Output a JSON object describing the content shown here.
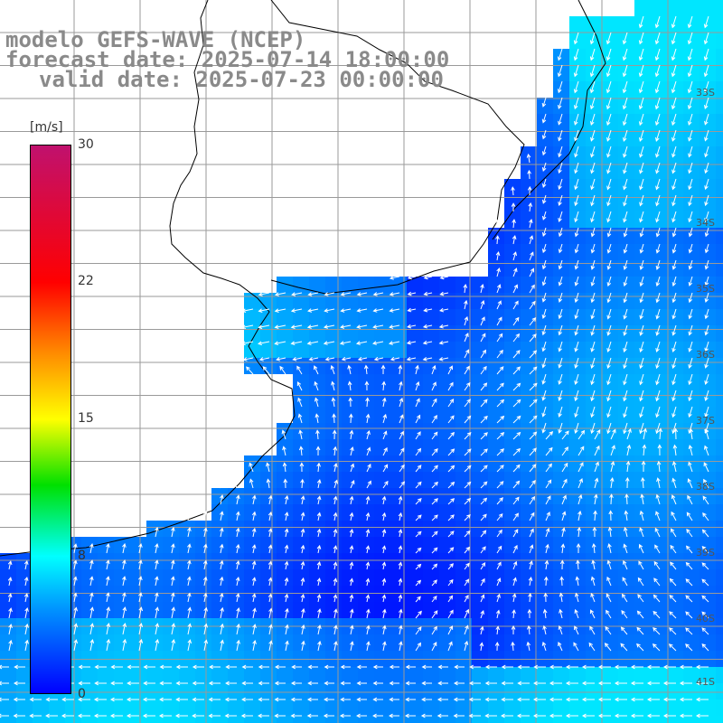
{
  "title": {
    "line1": "modelo GEFS-WAVE (NCEP)",
    "line2": "forecast date: 2025-07-14 18:00:00",
    "line3": "valid date: 2025-07-23 00:00:00"
  },
  "colorbar": {
    "unit": "[m/s]",
    "ticks": [
      "30",
      "22",
      "15",
      "8",
      "0"
    ],
    "range": [
      0,
      30
    ],
    "colors": [
      "#0000ff",
      "#0090ff",
      "#00ffff",
      "#00e000",
      "#ffff00",
      "#ff8c00",
      "#ff0000",
      "#c0116e"
    ]
  },
  "lat_labels": [
    "33S",
    "34S",
    "35S",
    "36S",
    "37S",
    "38S",
    "39S",
    "40S",
    "41S"
  ],
  "colors": {
    "land": "#ffffff",
    "coast": "#000000",
    "grid": "#9a9a9a",
    "title": "#8a8a8a",
    "arrows": "#ffffff"
  }
}
